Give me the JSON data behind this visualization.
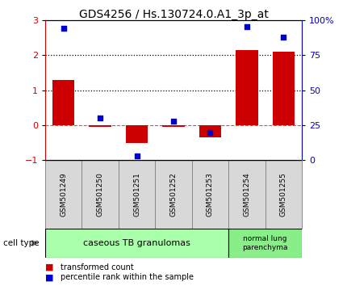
{
  "title": "GDS4256 / Hs.130724.0.A1_3p_at",
  "samples": [
    "GSM501249",
    "GSM501250",
    "GSM501251",
    "GSM501252",
    "GSM501253",
    "GSM501254",
    "GSM501255"
  ],
  "red_bars": [
    1.3,
    -0.05,
    -0.5,
    -0.05,
    -0.35,
    2.15,
    2.1
  ],
  "blue_squares": [
    94,
    30,
    3,
    28,
    20,
    95,
    88
  ],
  "ylim_left": [
    -1,
    3
  ],
  "ylim_right": [
    0,
    100
  ],
  "yticks_left": [
    -1,
    0,
    1,
    2,
    3
  ],
  "yticks_right": [
    0,
    25,
    50,
    75,
    100
  ],
  "ytick_labels_right": [
    "0",
    "25",
    "50",
    "75",
    "100%"
  ],
  "hlines_dotted": [
    1.0,
    2.0
  ],
  "hline_dashed_color": "#cc0000",
  "bar_color": "#cc0000",
  "square_color": "#0000cc",
  "cell_type_label": "cell type",
  "group1_label": "caseous TB granulomas",
  "group2_label": "normal lung\nparenchyma",
  "group1_color": "#aaffaa",
  "group2_color": "#88ee88",
  "legend_red": "transformed count",
  "legend_blue": "percentile rank within the sample",
  "bar_width": 0.6,
  "title_fontsize": 10,
  "tick_fontsize": 8,
  "axis_red_color": "#cc0000",
  "axis_blue_color": "#0000cc",
  "sample_box_color": "#d8d8d8",
  "sample_box_edge": "#888888"
}
